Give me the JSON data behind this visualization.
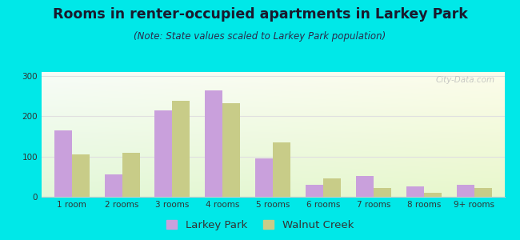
{
  "title": "Rooms in renter-occupied apartments in Larkey Park",
  "subtitle": "(Note: State values scaled to Larkey Park population)",
  "categories": [
    "1 room",
    "2 rooms",
    "3 rooms",
    "4 rooms",
    "5 rooms",
    "6 rooms",
    "7 rooms",
    "8 rooms",
    "9+ rooms"
  ],
  "larkey_park": [
    165,
    55,
    215,
    265,
    95,
    30,
    52,
    25,
    30
  ],
  "walnut_creek": [
    105,
    110,
    238,
    232,
    135,
    45,
    22,
    10,
    22
  ],
  "larkey_color": "#c9a0dc",
  "walnut_color": "#c8cc88",
  "background_outer": "#00e8e8",
  "ylim": [
    0,
    310
  ],
  "yticks": [
    0,
    100,
    200,
    300
  ],
  "bar_width": 0.35,
  "title_fontsize": 12.5,
  "subtitle_fontsize": 8.5,
  "legend_fontsize": 9.5,
  "tick_fontsize": 7.5,
  "watermark": "City-Data.com",
  "title_color": "#1a1a2e",
  "subtitle_color": "#2a2a4a",
  "grid_color": "#e0e0e0"
}
